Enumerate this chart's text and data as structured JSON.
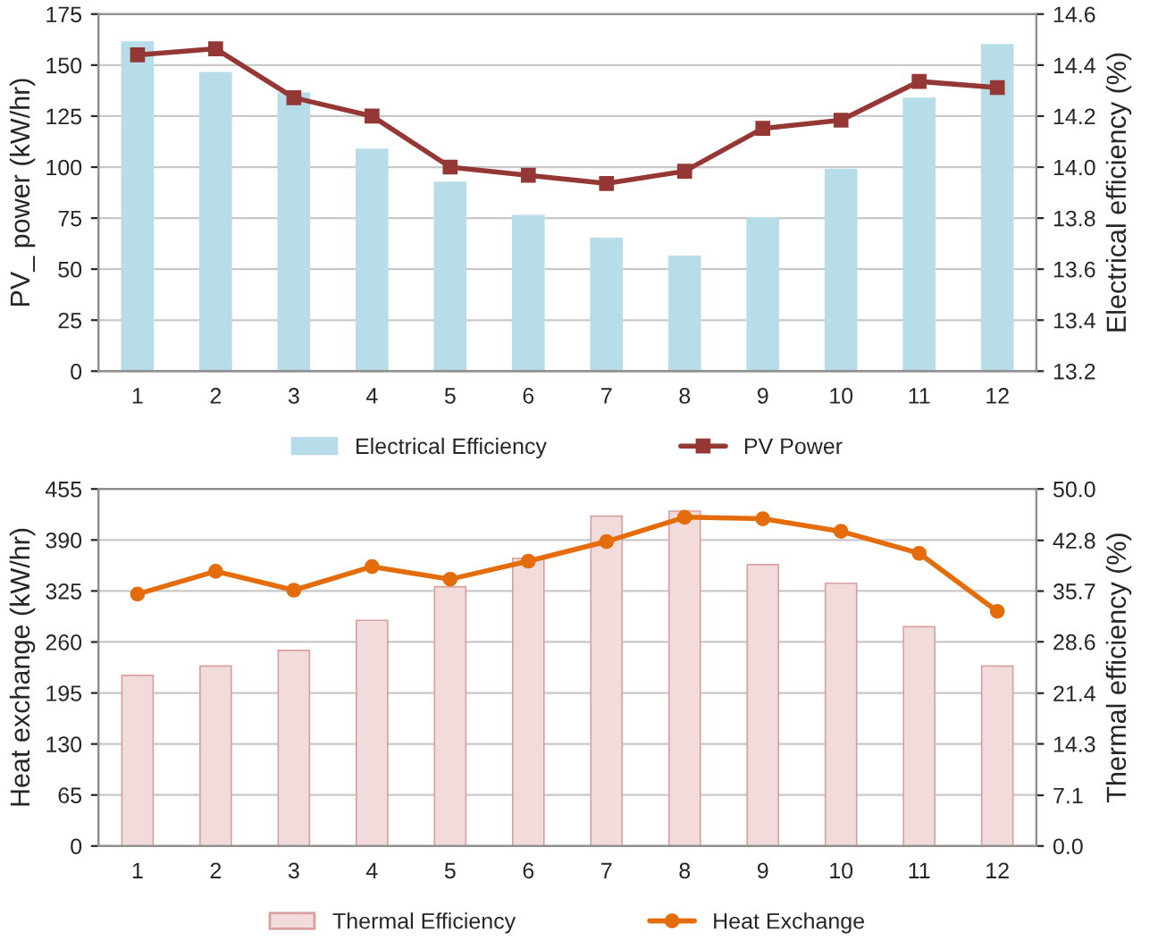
{
  "chart_data": [
    {
      "type": "bar",
      "ylabel": "PV_ power (kW/hr)",
      "y2label": "Electrical efficiency (%)",
      "categories": [
        "1",
        "2",
        "3",
        "4",
        "5",
        "6",
        "7",
        "8",
        "9",
        "10",
        "11",
        "12"
      ],
      "series": [
        {
          "name": "Electrical Efficiency",
          "axis": "y2",
          "color": "#b7dde8",
          "values": [
            14.49,
            14.37,
            14.29,
            14.07,
            13.94,
            13.81,
            13.72,
            13.65,
            13.8,
            13.99,
            14.27,
            14.48
          ]
        },
        {
          "name": "PV Power",
          "type": "line",
          "axis": "y",
          "color": "#953735",
          "marker": "square",
          "values": [
            155,
            158,
            134,
            125,
            100,
            96,
            92,
            98,
            119,
            123,
            142,
            139
          ]
        }
      ],
      "ylim": [
        0,
        175
      ],
      "yticks": [
        0,
        25,
        50,
        75,
        100,
        125,
        150,
        175
      ],
      "y2lim": [
        13.2,
        14.6
      ],
      "y2ticks": [
        {
          "value": 13.2,
          "label": "13.2"
        },
        {
          "value": 13.4,
          "label": "13.4"
        },
        {
          "value": 13.6,
          "label": "13.6"
        },
        {
          "value": 13.8,
          "label": "13.8"
        },
        {
          "value": 14.0,
          "label": "14.0"
        },
        {
          "value": 14.2,
          "label": "14.2"
        },
        {
          "value": 14.4,
          "label": "14.4"
        },
        {
          "value": 14.6,
          "label": "14.6"
        }
      ],
      "grid": "y",
      "legend": "bottom"
    },
    {
      "type": "bar",
      "ylabel": "Heat exchange (kW/hr)",
      "y2label": "Thermal efficiency (%)",
      "categories": [
        "1",
        "2",
        "3",
        "4",
        "5",
        "6",
        "7",
        "8",
        "9",
        "10",
        "11",
        "12"
      ],
      "series": [
        {
          "name": "Thermal Efficiency",
          "axis": "y2",
          "color": "#f2dcdb",
          "values": [
            23.9,
            25.2,
            27.4,
            31.6,
            36.3,
            40.3,
            46.2,
            46.9,
            39.4,
            36.8,
            30.7,
            25.2
          ]
        },
        {
          "name": "Heat Exchange",
          "type": "line",
          "axis": "y",
          "color": "#e46c0a",
          "marker": "circle",
          "values": [
            321,
            350,
            326,
            356,
            340,
            363,
            388,
            419,
            417,
            401,
            373,
            299
          ]
        }
      ],
      "ylim": [
        0,
        455
      ],
      "yticks": [
        0,
        65,
        130,
        195,
        260,
        325,
        390,
        455
      ],
      "y2lim": [
        0,
        50
      ],
      "y2ticks": [
        {
          "value": 0,
          "label": "0.0"
        },
        {
          "value": 7.1,
          "label": "7.1"
        },
        {
          "value": 14.3,
          "label": "14.3"
        },
        {
          "value": 21.4,
          "label": "21.4"
        },
        {
          "value": 28.6,
          "label": "28.6"
        },
        {
          "value": 35.7,
          "label": "35.7"
        },
        {
          "value": 42.8,
          "label": "42.8"
        },
        {
          "value": 50,
          "label": "50.0"
        }
      ],
      "grid": "y",
      "legend": "bottom"
    }
  ]
}
